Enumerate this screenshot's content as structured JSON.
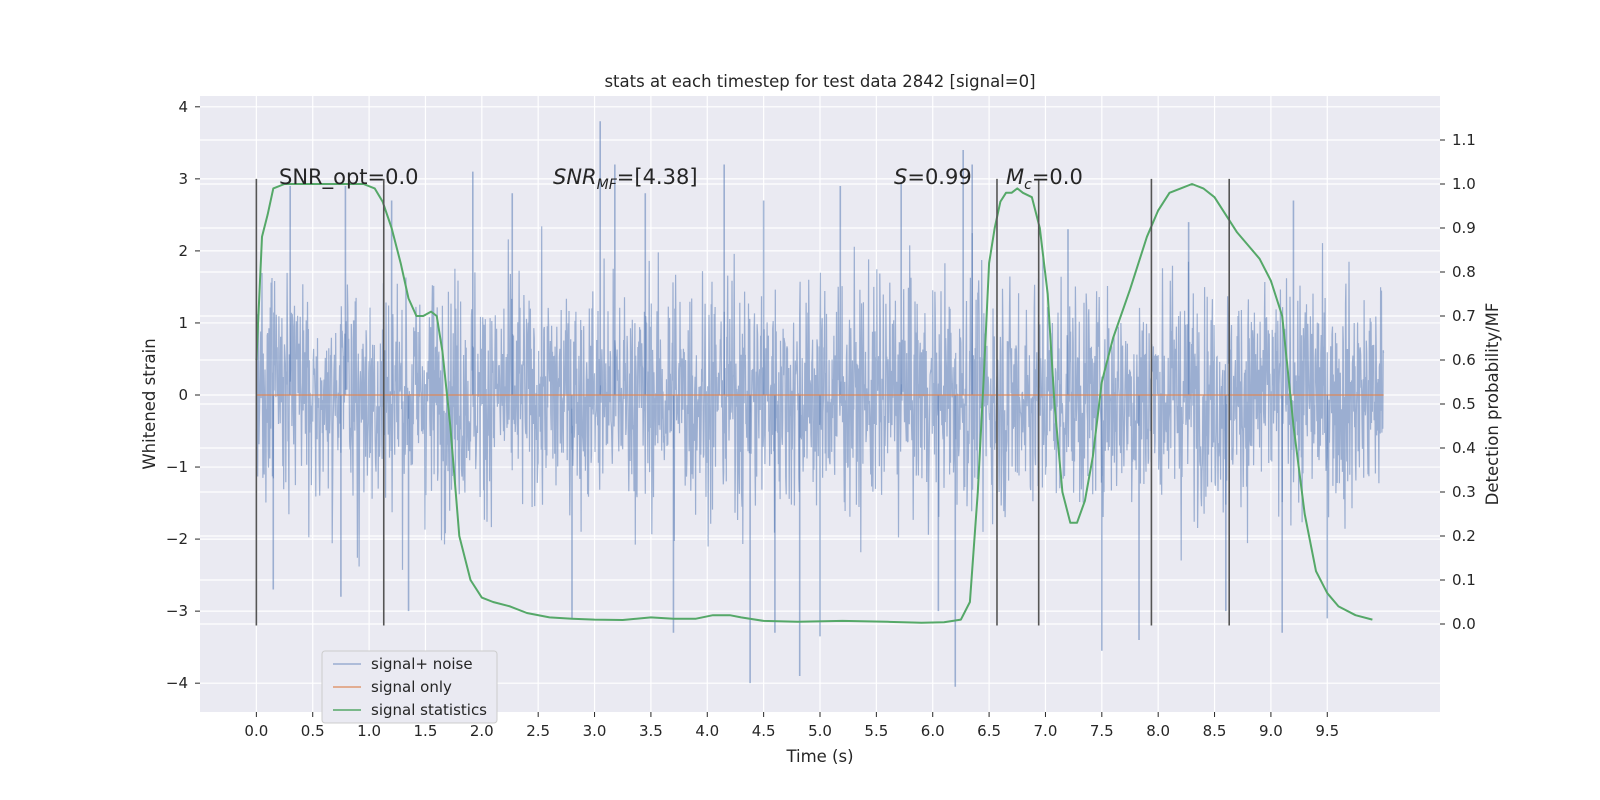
{
  "chart_data": {
    "type": "line",
    "title": "stats at each timestep for test data 2842 [signal=0]",
    "xlabel": "Time (s)",
    "ylabel": "Whitened strain",
    "ylabel_right": "Detection probability/MF",
    "xlim": [
      -0.5,
      10.5
    ],
    "ylim": [
      -4.4,
      4.15
    ],
    "ylim_right": [
      -0.2,
      1.2
    ],
    "x_ticks": [
      "0.0",
      "0.5",
      "1.0",
      "1.5",
      "2.0",
      "2.5",
      "3.0",
      "3.5",
      "4.0",
      "4.5",
      "5.0",
      "5.5",
      "6.0",
      "6.5",
      "7.0",
      "7.5",
      "8.0",
      "8.5",
      "9.0",
      "9.5"
    ],
    "y_ticks": [
      "−4",
      "−3",
      "−2",
      "−1",
      "0",
      "1",
      "2",
      "3",
      "4"
    ],
    "y_right_ticks": [
      "0.0",
      "0.1",
      "0.2",
      "0.3",
      "0.4",
      "0.5",
      "0.6",
      "0.7",
      "0.8",
      "0.9",
      "1.0",
      "1.1"
    ],
    "grid": true,
    "legend_position": "lower-left",
    "annotations": {
      "snr_opt": "SNR_opt=0.0",
      "snr_mf_main": "SNR",
      "snr_mf_sub": "MF",
      "snr_mf_rest": "=[4.38]",
      "s_main": "S",
      "s_rest": "=0.99",
      "mc_main": "M",
      "mc_sub": "c",
      "mc_rest": "=0.0"
    },
    "vertical_markers": [
      0.0,
      1.13,
      6.57,
      6.94,
      7.94,
      8.63
    ],
    "series": [
      {
        "name": "signal+ noise",
        "color": "#4c72b0",
        "opacity": 0.5,
        "description_range": [
          -4.0,
          3.8
        ],
        "envelope": {
          "x": [
            0.0,
            10.0
          ],
          "typical_band": [
            -2.1,
            2.2
          ],
          "spikes_up": [
            [
              0.3,
              2.9
            ],
            [
              0.79,
              2.9
            ],
            [
              1.2,
              2.7
            ],
            [
              1.92,
              3.1
            ],
            [
              2.27,
              2.8
            ],
            [
              3.05,
              3.8
            ],
            [
              3.18,
              3.2
            ],
            [
              3.45,
              2.8
            ],
            [
              4.15,
              3.2
            ],
            [
              4.5,
              2.7
            ],
            [
              5.18,
              2.9
            ],
            [
              5.72,
              2.95
            ],
            [
              6.27,
              3.4
            ],
            [
              6.35,
              3.2
            ],
            [
              7.2,
              2.3
            ],
            [
              8.27,
              2.4
            ],
            [
              9.2,
              2.7
            ]
          ],
          "spikes_down": [
            [
              0.15,
              -2.7
            ],
            [
              0.75,
              -2.8
            ],
            [
              1.35,
              -3.0
            ],
            [
              2.8,
              -3.1
            ],
            [
              3.7,
              -3.3
            ],
            [
              4.38,
              -4.0
            ],
            [
              4.6,
              -3.3
            ],
            [
              4.82,
              -3.9
            ],
            [
              5.0,
              -3.35
            ],
            [
              6.2,
              -4.05
            ],
            [
              6.05,
              -3.0
            ],
            [
              7.5,
              -3.55
            ],
            [
              7.83,
              -3.4
            ],
            [
              8.6,
              -3.0
            ],
            [
              9.1,
              -3.3
            ],
            [
              9.5,
              -3.1
            ]
          ]
        }
      },
      {
        "name": "signal only",
        "color": "#dd8452",
        "x": [
          0.0,
          10.0
        ],
        "y": [
          0.0,
          0.0
        ]
      },
      {
        "name": "signal statistics",
        "color": "#55a868",
        "axis": "right",
        "x": [
          0.0,
          0.05,
          0.1,
          0.15,
          0.25,
          0.4,
          0.6,
          0.8,
          0.95,
          1.05,
          1.12,
          1.2,
          1.28,
          1.35,
          1.42,
          1.48,
          1.55,
          1.6,
          1.65,
          1.72,
          1.8,
          1.9,
          2.0,
          2.1,
          2.25,
          2.4,
          2.6,
          2.8,
          3.0,
          3.25,
          3.5,
          3.7,
          3.9,
          4.05,
          4.2,
          4.3,
          4.5,
          4.8,
          5.2,
          5.6,
          5.9,
          6.1,
          6.25,
          6.33,
          6.4,
          6.45,
          6.5,
          6.55,
          6.6,
          6.65,
          6.7,
          6.75,
          6.8,
          6.88,
          6.95,
          7.02,
          7.08,
          7.15,
          7.22,
          7.28,
          7.35,
          7.42,
          7.5,
          7.6,
          7.75,
          7.9,
          8.0,
          8.1,
          8.2,
          8.3,
          8.4,
          8.5,
          8.6,
          8.7,
          8.8,
          8.9,
          9.0,
          9.1,
          9.2,
          9.3,
          9.4,
          9.5,
          9.6,
          9.75,
          9.9
        ],
        "y": [
          0.6,
          0.88,
          0.93,
          0.99,
          1.0,
          1.0,
          1.0,
          1.0,
          1.0,
          0.99,
          0.96,
          0.9,
          0.82,
          0.74,
          0.7,
          0.7,
          0.71,
          0.7,
          0.62,
          0.45,
          0.2,
          0.1,
          0.06,
          0.05,
          0.04,
          0.025,
          0.015,
          0.012,
          0.01,
          0.009,
          0.015,
          0.012,
          0.012,
          0.02,
          0.02,
          0.015,
          0.007,
          0.005,
          0.007,
          0.005,
          0.003,
          0.004,
          0.01,
          0.05,
          0.3,
          0.55,
          0.82,
          0.9,
          0.96,
          0.98,
          0.98,
          0.99,
          0.98,
          0.97,
          0.9,
          0.75,
          0.5,
          0.3,
          0.23,
          0.23,
          0.28,
          0.38,
          0.55,
          0.65,
          0.76,
          0.88,
          0.94,
          0.98,
          0.99,
          1.0,
          0.99,
          0.97,
          0.93,
          0.89,
          0.86,
          0.83,
          0.78,
          0.7,
          0.45,
          0.25,
          0.12,
          0.07,
          0.04,
          0.02,
          0.01
        ]
      }
    ]
  }
}
